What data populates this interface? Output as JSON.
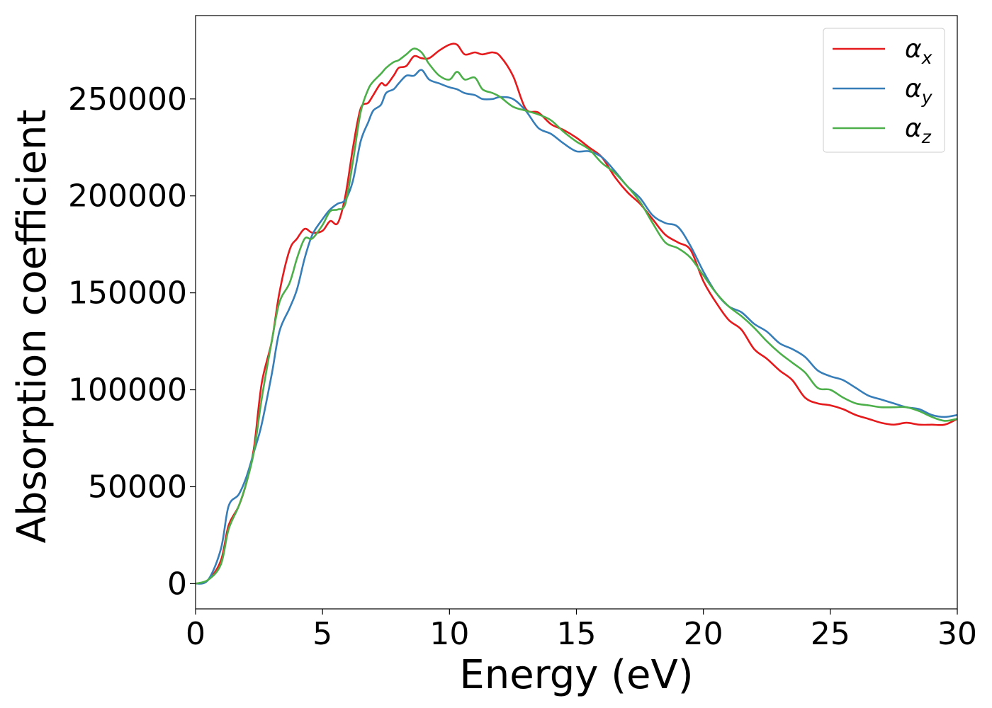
{
  "chart_data": {
    "type": "line",
    "title": "",
    "xlabel": "Energy (eV)",
    "ylabel": "Absorption coefficient",
    "xlim": [
      0,
      30
    ],
    "ylim": [
      -13000,
      293000
    ],
    "xticks": [
      0,
      5,
      10,
      15,
      20,
      25,
      30
    ],
    "xtick_labels": [
      "0",
      "5",
      "10",
      "15",
      "20",
      "25",
      "30"
    ],
    "yticks": [
      0,
      50000,
      100000,
      150000,
      200000,
      250000
    ],
    "ytick_labels": [
      "0",
      "50000",
      "100000",
      "150000",
      "200000",
      "250000"
    ],
    "grid": false,
    "legend": "top-right",
    "series": [
      {
        "name": "αx",
        "base": "α",
        "sub": "x",
        "color": "#e41a1c",
        "x": [
          0,
          0.5,
          1.0,
          1.3,
          1.7,
          2.0,
          2.3,
          2.6,
          3.0,
          3.3,
          3.7,
          4.0,
          4.3,
          4.6,
          5.0,
          5.3,
          5.6,
          5.9,
          6.2,
          6.5,
          6.8,
          7.0,
          7.3,
          7.5,
          7.8,
          8.0,
          8.3,
          8.6,
          8.9,
          9.2,
          9.6,
          10.0,
          10.3,
          10.6,
          11.0,
          11.3,
          11.7,
          12.0,
          12.5,
          13.0,
          13.5,
          14.0,
          14.5,
          15.0,
          15.5,
          16.0,
          16.5,
          17.0,
          17.5,
          18.0,
          18.5,
          19.0,
          19.5,
          20.0,
          20.5,
          21.0,
          21.5,
          22.0,
          22.5,
          23.0,
          23.5,
          24.0,
          24.5,
          25.0,
          25.5,
          26.0,
          26.5,
          27.0,
          27.5,
          28.0,
          28.5,
          29.0,
          29.5,
          30.0
        ],
        "y": [
          0,
          2000,
          12000,
          30000,
          40000,
          52000,
          70000,
          103000,
          125000,
          150000,
          172000,
          178000,
          183000,
          181000,
          182000,
          187000,
          186000,
          200000,
          225000,
          245000,
          248000,
          252000,
          258000,
          257000,
          262000,
          266000,
          267000,
          272000,
          271000,
          271000,
          275000,
          278000,
          278000,
          273000,
          274000,
          273000,
          274000,
          272000,
          262000,
          245000,
          243000,
          237000,
          234000,
          230000,
          225000,
          220000,
          210000,
          202000,
          196000,
          188000,
          180000,
          176000,
          172000,
          156000,
          145000,
          136000,
          131000,
          121000,
          116000,
          110000,
          105000,
          96000,
          93000,
          92000,
          90000,
          87000,
          85000,
          83000,
          82000,
          83000,
          82000,
          82000,
          82000,
          85000
        ]
      },
      {
        "name": "αy",
        "base": "α",
        "sub": "y",
        "color": "#377eb8",
        "x": [
          0,
          0.5,
          1.0,
          1.3,
          1.7,
          2.0,
          2.3,
          2.6,
          3.0,
          3.3,
          3.7,
          4.0,
          4.3,
          4.6,
          5.0,
          5.3,
          5.6,
          5.9,
          6.2,
          6.5,
          6.8,
          7.0,
          7.3,
          7.5,
          7.8,
          8.0,
          8.3,
          8.6,
          8.9,
          9.2,
          9.6,
          10.0,
          10.3,
          10.6,
          11.0,
          11.3,
          11.7,
          12.0,
          12.5,
          13.0,
          13.5,
          14.0,
          14.5,
          15.0,
          15.5,
          16.0,
          16.5,
          17.0,
          17.5,
          18.0,
          18.5,
          19.0,
          19.5,
          20.0,
          20.5,
          21.0,
          21.5,
          22.0,
          22.5,
          23.0,
          23.5,
          24.0,
          24.5,
          25.0,
          25.5,
          26.0,
          26.5,
          27.0,
          27.5,
          28.0,
          28.5,
          29.0,
          29.5,
          30.0
        ],
        "y": [
          0,
          2000,
          18000,
          40000,
          46000,
          55000,
          68000,
          82000,
          108000,
          130000,
          142000,
          152000,
          168000,
          180000,
          188000,
          193000,
          196000,
          198000,
          208000,
          228000,
          238000,
          244000,
          247000,
          253000,
          255000,
          258000,
          262000,
          262000,
          265000,
          260000,
          258000,
          256000,
          255000,
          253000,
          252000,
          250000,
          250000,
          251000,
          250000,
          244000,
          235000,
          232000,
          227000,
          223000,
          223000,
          220000,
          213000,
          205000,
          199000,
          190000,
          186000,
          184000,
          174000,
          161000,
          150000,
          143000,
          140000,
          134000,
          130000,
          124000,
          121000,
          117000,
          110000,
          107000,
          105000,
          101000,
          97000,
          95000,
          93000,
          91000,
          90000,
          87000,
          86000,
          87000
        ]
      },
      {
        "name": "αz",
        "base": "α",
        "sub": "z",
        "color": "#4daf4a",
        "x": [
          0,
          0.5,
          1.0,
          1.3,
          1.7,
          2.0,
          2.3,
          2.6,
          3.0,
          3.3,
          3.7,
          4.0,
          4.3,
          4.6,
          5.0,
          5.3,
          5.6,
          5.9,
          6.2,
          6.5,
          6.8,
          7.0,
          7.3,
          7.5,
          7.8,
          8.0,
          8.3,
          8.6,
          8.9,
          9.2,
          9.6,
          10.0,
          10.3,
          10.6,
          11.0,
          11.3,
          11.7,
          12.0,
          12.5,
          13.0,
          13.5,
          14.0,
          14.5,
          15.0,
          15.5,
          16.0,
          16.5,
          17.0,
          17.5,
          18.0,
          18.5,
          19.0,
          19.5,
          20.0,
          20.5,
          21.0,
          21.5,
          22.0,
          22.5,
          23.0,
          23.5,
          24.0,
          24.5,
          25.0,
          25.5,
          26.0,
          26.5,
          27.0,
          27.5,
          28.0,
          28.5,
          29.0,
          29.5,
          30.0
        ],
        "y": [
          0,
          2000,
          10000,
          28000,
          40000,
          52000,
          68000,
          95000,
          125000,
          145000,
          155000,
          168000,
          178000,
          178000,
          185000,
          192000,
          193000,
          196000,
          218000,
          243000,
          255000,
          259000,
          263000,
          266000,
          269000,
          270000,
          273000,
          276000,
          274000,
          268000,
          262000,
          260000,
          264000,
          260000,
          261000,
          255000,
          253000,
          251000,
          246000,
          244000,
          242000,
          239000,
          233000,
          228000,
          224000,
          217000,
          212000,
          205000,
          197000,
          186000,
          176000,
          173000,
          168000,
          159000,
          150000,
          143000,
          138000,
          132000,
          125000,
          119000,
          114000,
          109000,
          101000,
          100000,
          96000,
          93000,
          92000,
          91000,
          91000,
          91000,
          89000,
          86000,
          84000,
          85000
        ]
      }
    ]
  }
}
